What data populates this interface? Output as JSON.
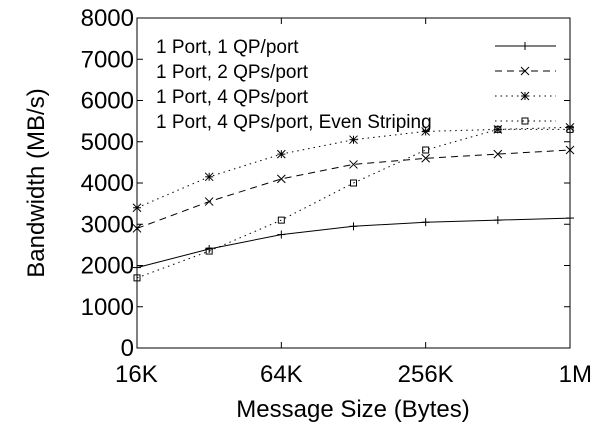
{
  "chart_data": {
    "type": "line",
    "title": "",
    "xlabel": "Message Size (Bytes)",
    "ylabel": "Bandwidth (MB/s)",
    "x_scale": "log2",
    "x": [
      "16K",
      "32K",
      "64K",
      "128K",
      "256K",
      "512K",
      "1M"
    ],
    "xticks": [
      "16K",
      "64K",
      "256K",
      "1M"
    ],
    "yticks": [
      "0",
      "1000",
      "2000",
      "3000",
      "4000",
      "5000",
      "6000",
      "7000",
      "8000"
    ],
    "ylim": [
      0,
      8000
    ],
    "grid": false,
    "legend_position": "top",
    "series": [
      {
        "name": "1 Port, 1 QP/port",
        "marker": "plus",
        "dash": "solid",
        "values": [
          1950,
          2400,
          2750,
          2950,
          3050,
          3100,
          3150
        ]
      },
      {
        "name": "1 Port, 2 QPs/port",
        "marker": "x",
        "dash": "dashed",
        "values": [
          2900,
          3550,
          4100,
          4450,
          4600,
          4700,
          4800
        ]
      },
      {
        "name": "1 Port, 4 QPs/port",
        "marker": "asterisk",
        "dash": "dotted",
        "values": [
          3400,
          4150,
          4700,
          5050,
          5250,
          5300,
          5350
        ]
      },
      {
        "name": "1 Port, 4 QPs/port, Even Striping",
        "marker": "square",
        "dash": "dotted",
        "values": [
          1700,
          2350,
          3100,
          4000,
          4800,
          5300,
          5300
        ]
      }
    ]
  }
}
